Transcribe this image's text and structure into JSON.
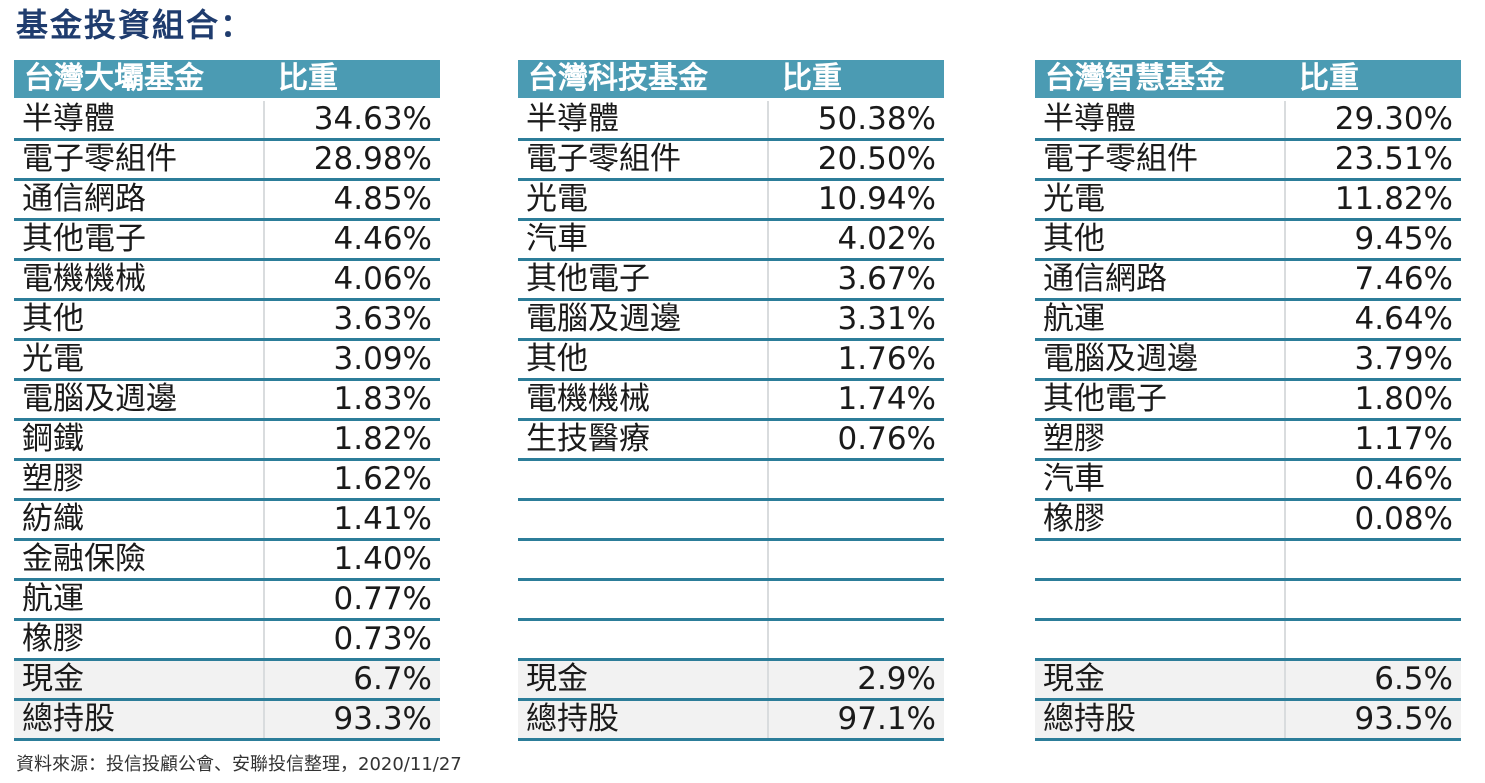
{
  "page": {
    "title": "基金投資組合：",
    "source_note": "資料來源：投信投顧公會、安聯投信整理，2020/11/27"
  },
  "weight_header": "比重",
  "funds": [
    {
      "name": "台灣大壩基金",
      "rows": [
        {
          "sector": "半導體",
          "weight": "34.63%"
        },
        {
          "sector": "電子零組件",
          "weight": "28.98%"
        },
        {
          "sector": "通信網路",
          "weight": "4.85%"
        },
        {
          "sector": "其他電子",
          "weight": "4.46%"
        },
        {
          "sector": "電機機械",
          "weight": "4.06%"
        },
        {
          "sector": "其他",
          "weight": "3.63%"
        },
        {
          "sector": "光電",
          "weight": "3.09%"
        },
        {
          "sector": "電腦及週邊",
          "weight": "1.83%"
        },
        {
          "sector": "鋼鐵",
          "weight": "1.82%"
        },
        {
          "sector": "塑膠",
          "weight": "1.62%"
        },
        {
          "sector": "紡織",
          "weight": "1.41%"
        },
        {
          "sector": "金融保險",
          "weight": "1.40%"
        },
        {
          "sector": "航運",
          "weight": "0.77%"
        },
        {
          "sector": "橡膠",
          "weight": "0.73%"
        }
      ],
      "summary": [
        {
          "label": "現金",
          "value": "6.7%"
        },
        {
          "label": "總持股",
          "value": "93.3%"
        }
      ]
    },
    {
      "name": "台灣科技基金",
      "rows": [
        {
          "sector": "半導體",
          "weight": "50.38%"
        },
        {
          "sector": "電子零組件",
          "weight": "20.50%"
        },
        {
          "sector": "光電",
          "weight": "10.94%"
        },
        {
          "sector": "汽車",
          "weight": "4.02%"
        },
        {
          "sector": "其他電子",
          "weight": "3.67%"
        },
        {
          "sector": "電腦及週邊",
          "weight": "3.31%"
        },
        {
          "sector": "其他",
          "weight": "1.76%"
        },
        {
          "sector": "電機機械",
          "weight": "1.74%"
        },
        {
          "sector": "生技醫療",
          "weight": "0.76%"
        }
      ],
      "summary": [
        {
          "label": "現金",
          "value": "2.9%"
        },
        {
          "label": "總持股",
          "value": "97.1%"
        }
      ]
    },
    {
      "name": "台灣智慧基金",
      "rows": [
        {
          "sector": "半導體",
          "weight": "29.30%"
        },
        {
          "sector": "電子零組件",
          "weight": "23.51%"
        },
        {
          "sector": "光電",
          "weight": "11.82%"
        },
        {
          "sector": "其他",
          "weight": "9.45%"
        },
        {
          "sector": "通信網路",
          "weight": "7.46%"
        },
        {
          "sector": "航運",
          "weight": "4.64%"
        },
        {
          "sector": "電腦及週邊",
          "weight": "3.79%"
        },
        {
          "sector": "其他電子",
          "weight": "1.80%"
        },
        {
          "sector": "塑膠",
          "weight": "1.17%"
        },
        {
          "sector": "汽車",
          "weight": "0.46%"
        },
        {
          "sector": "橡膠",
          "weight": "0.08%"
        }
      ],
      "summary": [
        {
          "label": "現金",
          "value": "6.5%"
        },
        {
          "label": "總持股",
          "value": "93.5%"
        }
      ]
    }
  ]
}
